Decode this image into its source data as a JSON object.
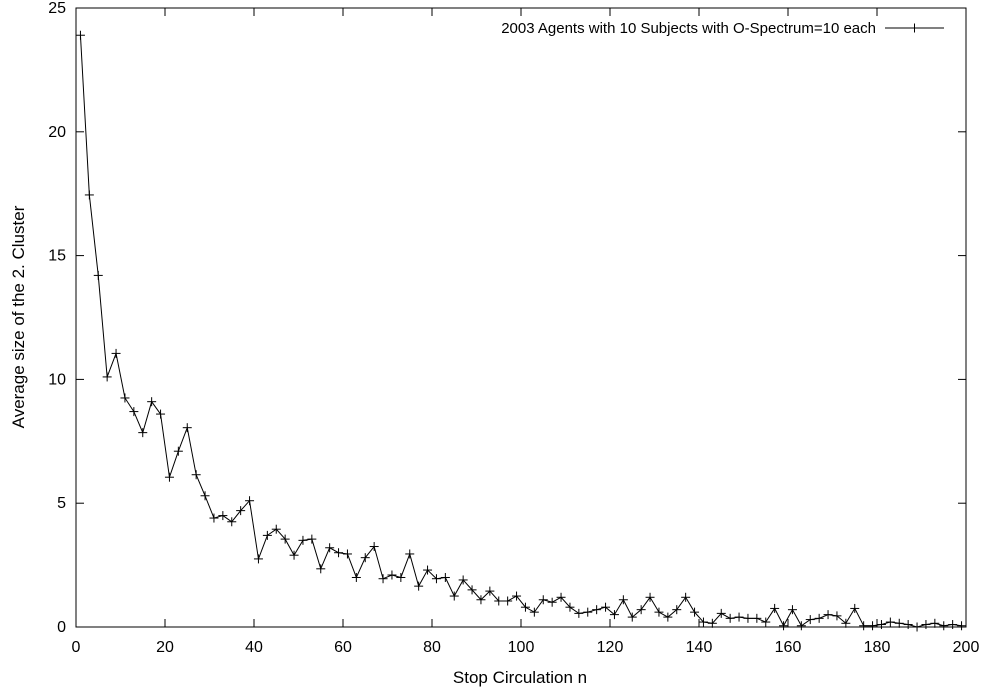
{
  "chart_data": {
    "type": "line",
    "title": "",
    "xlabel": "Stop Circulation n",
    "ylabel": "Average size of the 2. Cluster",
    "xlim": [
      0,
      200
    ],
    "ylim": [
      0,
      25
    ],
    "x_ticks": [
      0,
      20,
      40,
      60,
      80,
      100,
      120,
      140,
      160,
      180,
      200
    ],
    "y_ticks": [
      0,
      5,
      10,
      15,
      20,
      25
    ],
    "grid": false,
    "legend_position": "top-right",
    "series": [
      {
        "name": "2003 Agents with 10 Subjects with O-Spectrum=10 each",
        "marker": "plus",
        "color": "#000000",
        "x": [
          1,
          3,
          5,
          7,
          9,
          11,
          13,
          15,
          17,
          19,
          21,
          23,
          25,
          27,
          29,
          31,
          33,
          35,
          37,
          39,
          41,
          43,
          45,
          47,
          49,
          51,
          53,
          55,
          57,
          59,
          61,
          63,
          65,
          67,
          69,
          71,
          73,
          75,
          77,
          79,
          81,
          83,
          85,
          87,
          89,
          91,
          93,
          95,
          97,
          99,
          101,
          103,
          105,
          107,
          109,
          111,
          113,
          115,
          117,
          119,
          121,
          123,
          125,
          127,
          129,
          131,
          133,
          135,
          137,
          139,
          141,
          143,
          145,
          147,
          149,
          151,
          153,
          155,
          157,
          159,
          161,
          163,
          165,
          167,
          169,
          171,
          173,
          175,
          177,
          179,
          181,
          183,
          185,
          187,
          189,
          191,
          193,
          195,
          197,
          199
        ],
        "y": [
          23.9,
          17.45,
          14.2,
          10.1,
          11.05,
          9.25,
          8.7,
          7.85,
          9.1,
          8.6,
          6.05,
          7.1,
          8.05,
          6.15,
          5.3,
          4.4,
          4.5,
          4.25,
          4.7,
          5.1,
          2.75,
          3.7,
          3.95,
          3.55,
          2.9,
          3.5,
          3.55,
          2.35,
          3.2,
          3.0,
          2.95,
          2.0,
          2.8,
          3.25,
          1.95,
          2.1,
          2.0,
          2.95,
          1.65,
          2.3,
          1.95,
          2.0,
          1.25,
          1.9,
          1.5,
          1.1,
          1.45,
          1.05,
          1.05,
          1.25,
          0.8,
          0.6,
          1.1,
          1.0,
          1.2,
          0.8,
          0.55,
          0.6,
          0.7,
          0.8,
          0.5,
          1.1,
          0.4,
          0.7,
          1.2,
          0.6,
          0.4,
          0.7,
          1.2,
          0.6,
          0.2,
          0.15,
          0.55,
          0.35,
          0.4,
          0.35,
          0.35,
          0.2,
          0.75,
          0.05,
          0.7,
          0.05,
          0.3,
          0.35,
          0.5,
          0.45,
          0.15,
          0.75,
          0.05,
          0.05,
          0.1,
          0.2,
          0.15,
          0.1,
          0.0,
          0.1,
          0.15,
          0.05,
          0.1,
          0.05
        ]
      }
    ]
  }
}
